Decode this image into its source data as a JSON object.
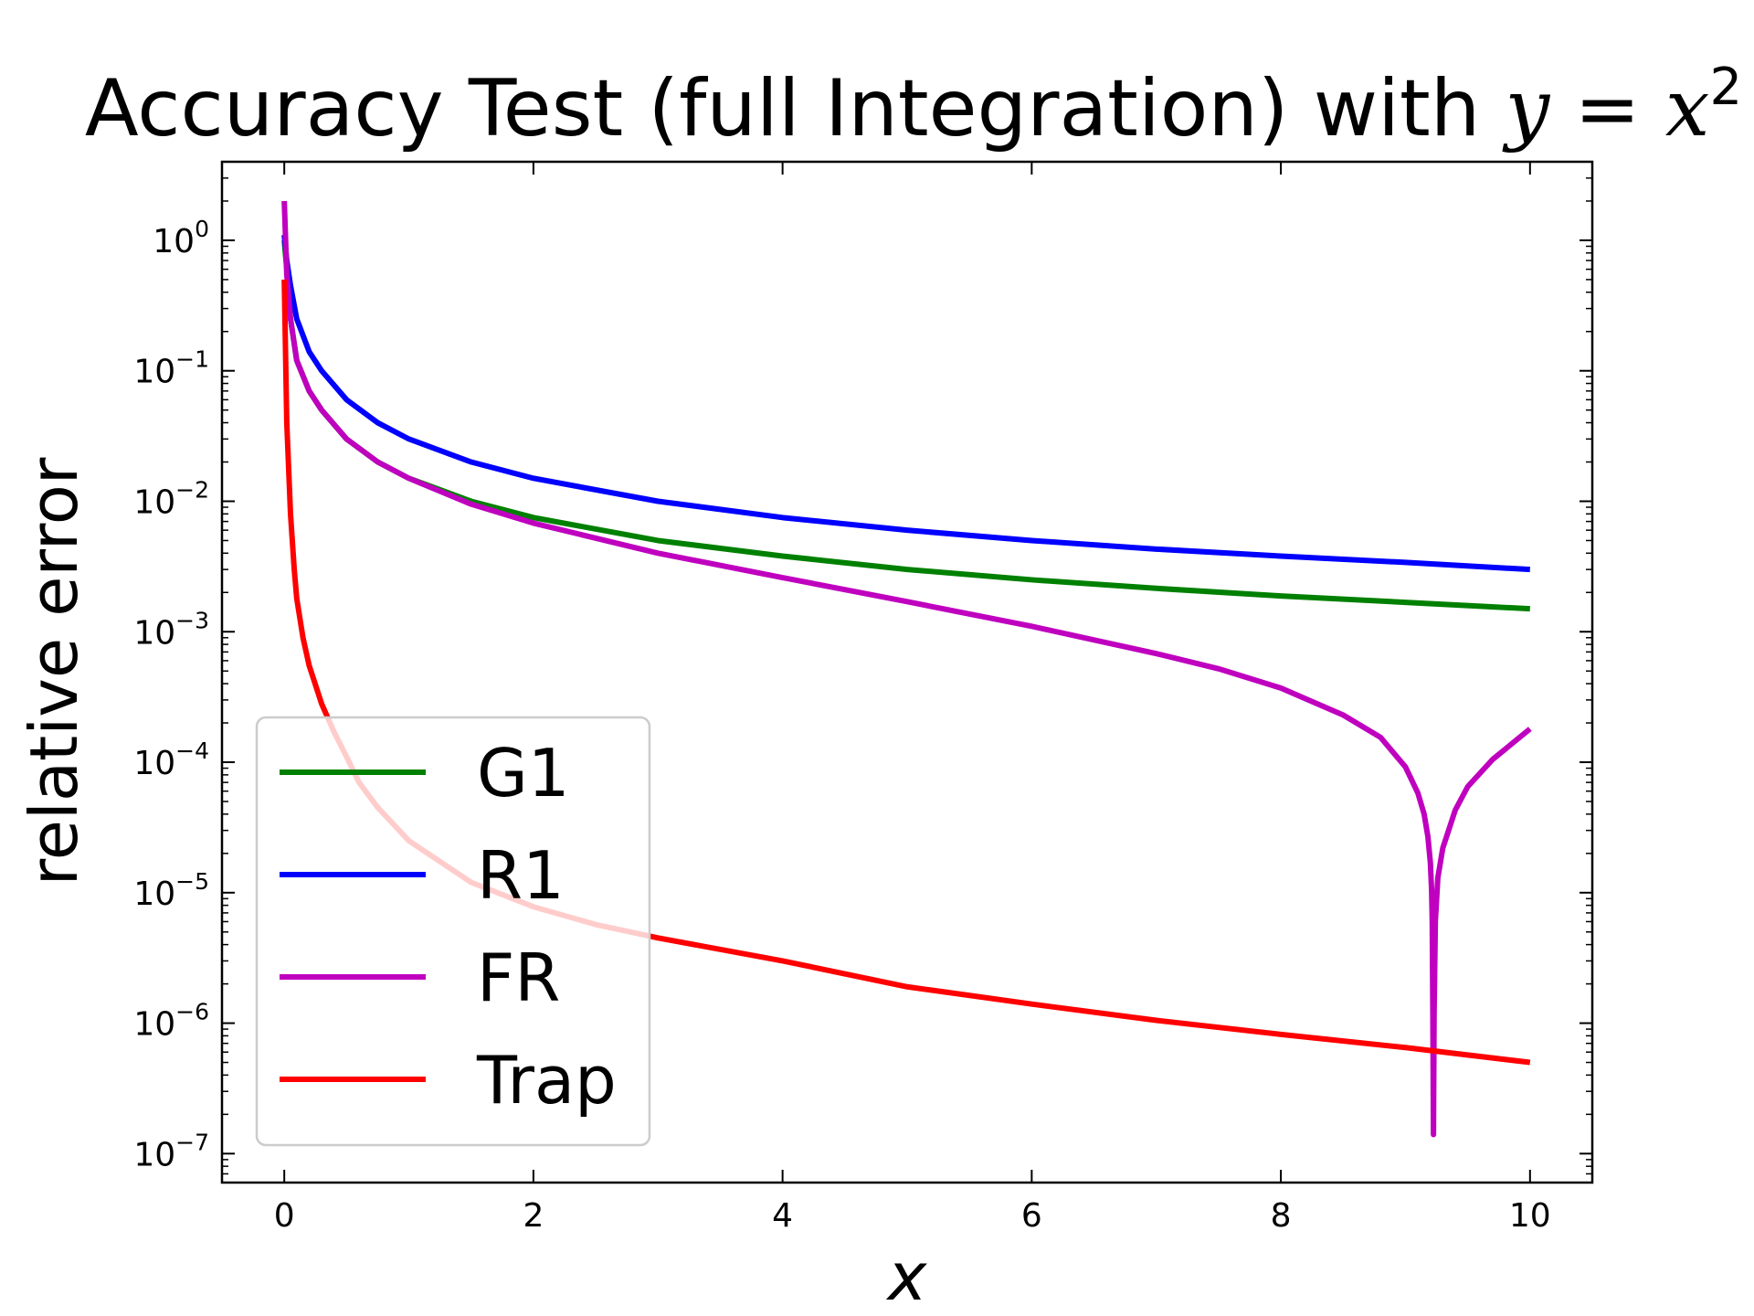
{
  "chart_data": {
    "type": "line",
    "title": "Accuracy Test (full Integration) with ",
    "title_math": {
      "lhs": "y",
      "eq": " = ",
      "rhs": "x",
      "exp": "2"
    },
    "xlabel": "x",
    "ylabel": "relative error",
    "xlim": [
      -0.5,
      10.5
    ],
    "ylim": [
      6e-08,
      4.0
    ],
    "y_scale": "log",
    "x_ticks": [
      {
        "value": 0,
        "label": "0"
      },
      {
        "value": 2,
        "label": "2"
      },
      {
        "value": 4,
        "label": "4"
      },
      {
        "value": 6,
        "label": "6"
      },
      {
        "value": 8,
        "label": "8"
      },
      {
        "value": 10,
        "label": "10"
      }
    ],
    "y_ticks": [
      {
        "exp": 0,
        "base": "10",
        "sup": "0"
      },
      {
        "exp": -1,
        "base": "10",
        "sup": "−1"
      },
      {
        "exp": -2,
        "base": "10",
        "sup": "−2"
      },
      {
        "exp": -3,
        "base": "10",
        "sup": "−3"
      },
      {
        "exp": -4,
        "base": "10",
        "sup": "−4"
      },
      {
        "exp": -5,
        "base": "10",
        "sup": "−5"
      },
      {
        "exp": -6,
        "base": "10",
        "sup": "−6"
      },
      {
        "exp": -7,
        "base": "10",
        "sup": "−7"
      }
    ],
    "grid": false,
    "legend_position": "lower-left",
    "series": [
      {
        "name": "G1",
        "color": "#008000",
        "x": [
          0.0,
          0.02,
          0.05,
          0.1,
          0.2,
          0.3,
          0.5,
          0.75,
          1.0,
          1.5,
          2.0,
          3.0,
          4.0,
          5.0,
          6.0,
          7.0,
          8.0,
          9.0,
          10.0
        ],
        "y": [
          1.0,
          0.6,
          0.25,
          0.12,
          0.07,
          0.05,
          0.03,
          0.02,
          0.015,
          0.01,
          0.0075,
          0.005,
          0.0038,
          0.003,
          0.0025,
          0.00215,
          0.00188,
          0.00168,
          0.0015
        ]
      },
      {
        "name": "R1",
        "color": "#0000ff",
        "x": [
          0.0,
          0.02,
          0.05,
          0.1,
          0.2,
          0.3,
          0.5,
          0.75,
          1.0,
          1.5,
          2.0,
          3.0,
          4.0,
          5.0,
          6.0,
          7.0,
          8.0,
          9.0,
          10.0
        ],
        "y": [
          1.1,
          0.7,
          0.45,
          0.25,
          0.14,
          0.1,
          0.06,
          0.04,
          0.03,
          0.02,
          0.015,
          0.01,
          0.0075,
          0.006,
          0.005,
          0.0043,
          0.0038,
          0.0034,
          0.003
        ]
      },
      {
        "name": "FR",
        "color": "#bf00bf",
        "x": [
          0.0,
          0.02,
          0.05,
          0.1,
          0.2,
          0.3,
          0.5,
          0.75,
          1.0,
          1.5,
          2.0,
          3.0,
          4.0,
          5.0,
          6.0,
          7.0,
          7.5,
          8.0,
          8.5,
          8.8,
          9.0,
          9.1,
          9.15,
          9.18,
          9.2,
          9.21,
          9.215,
          9.22,
          9.225,
          9.23,
          9.24,
          9.26,
          9.3,
          9.4,
          9.5,
          9.7,
          10.0
        ],
        "y": [
          2.0,
          0.55,
          0.25,
          0.12,
          0.07,
          0.05,
          0.03,
          0.02,
          0.015,
          0.0095,
          0.0068,
          0.004,
          0.0026,
          0.0017,
          0.0011,
          0.00068,
          0.00052,
          0.00037,
          0.00023,
          0.000155,
          9.2e-05,
          5.8e-05,
          4e-05,
          2.7e-05,
          1.7e-05,
          1.05e-05,
          6e-06,
          1.2e-06,
          1.4e-07,
          1.2e-06,
          6e-06,
          1.3e-05,
          2.2e-05,
          4.3e-05,
          6.5e-05,
          0.000105,
          0.00018
        ]
      },
      {
        "name": "Trap",
        "color": "#ff0000",
        "x": [
          0.0,
          0.02,
          0.05,
          0.08,
          0.1,
          0.15,
          0.2,
          0.3,
          0.4,
          0.5,
          0.6,
          0.75,
          1.0,
          1.5,
          2.0,
          2.5,
          3.0,
          4.0,
          5.0,
          6.0,
          7.0,
          8.0,
          9.0,
          10.0
        ],
        "y": [
          0.5,
          0.04,
          0.008,
          0.003,
          0.0018,
          0.0009,
          0.00055,
          0.00028,
          0.00017,
          0.00011,
          7e-05,
          4.5e-05,
          2.5e-05,
          1.2e-05,
          7.8e-06,
          5.7e-06,
          4.5e-06,
          3e-06,
          1.9e-06,
          1.4e-06,
          1.05e-06,
          8.2e-07,
          6.5e-07,
          5e-07
        ]
      }
    ]
  }
}
